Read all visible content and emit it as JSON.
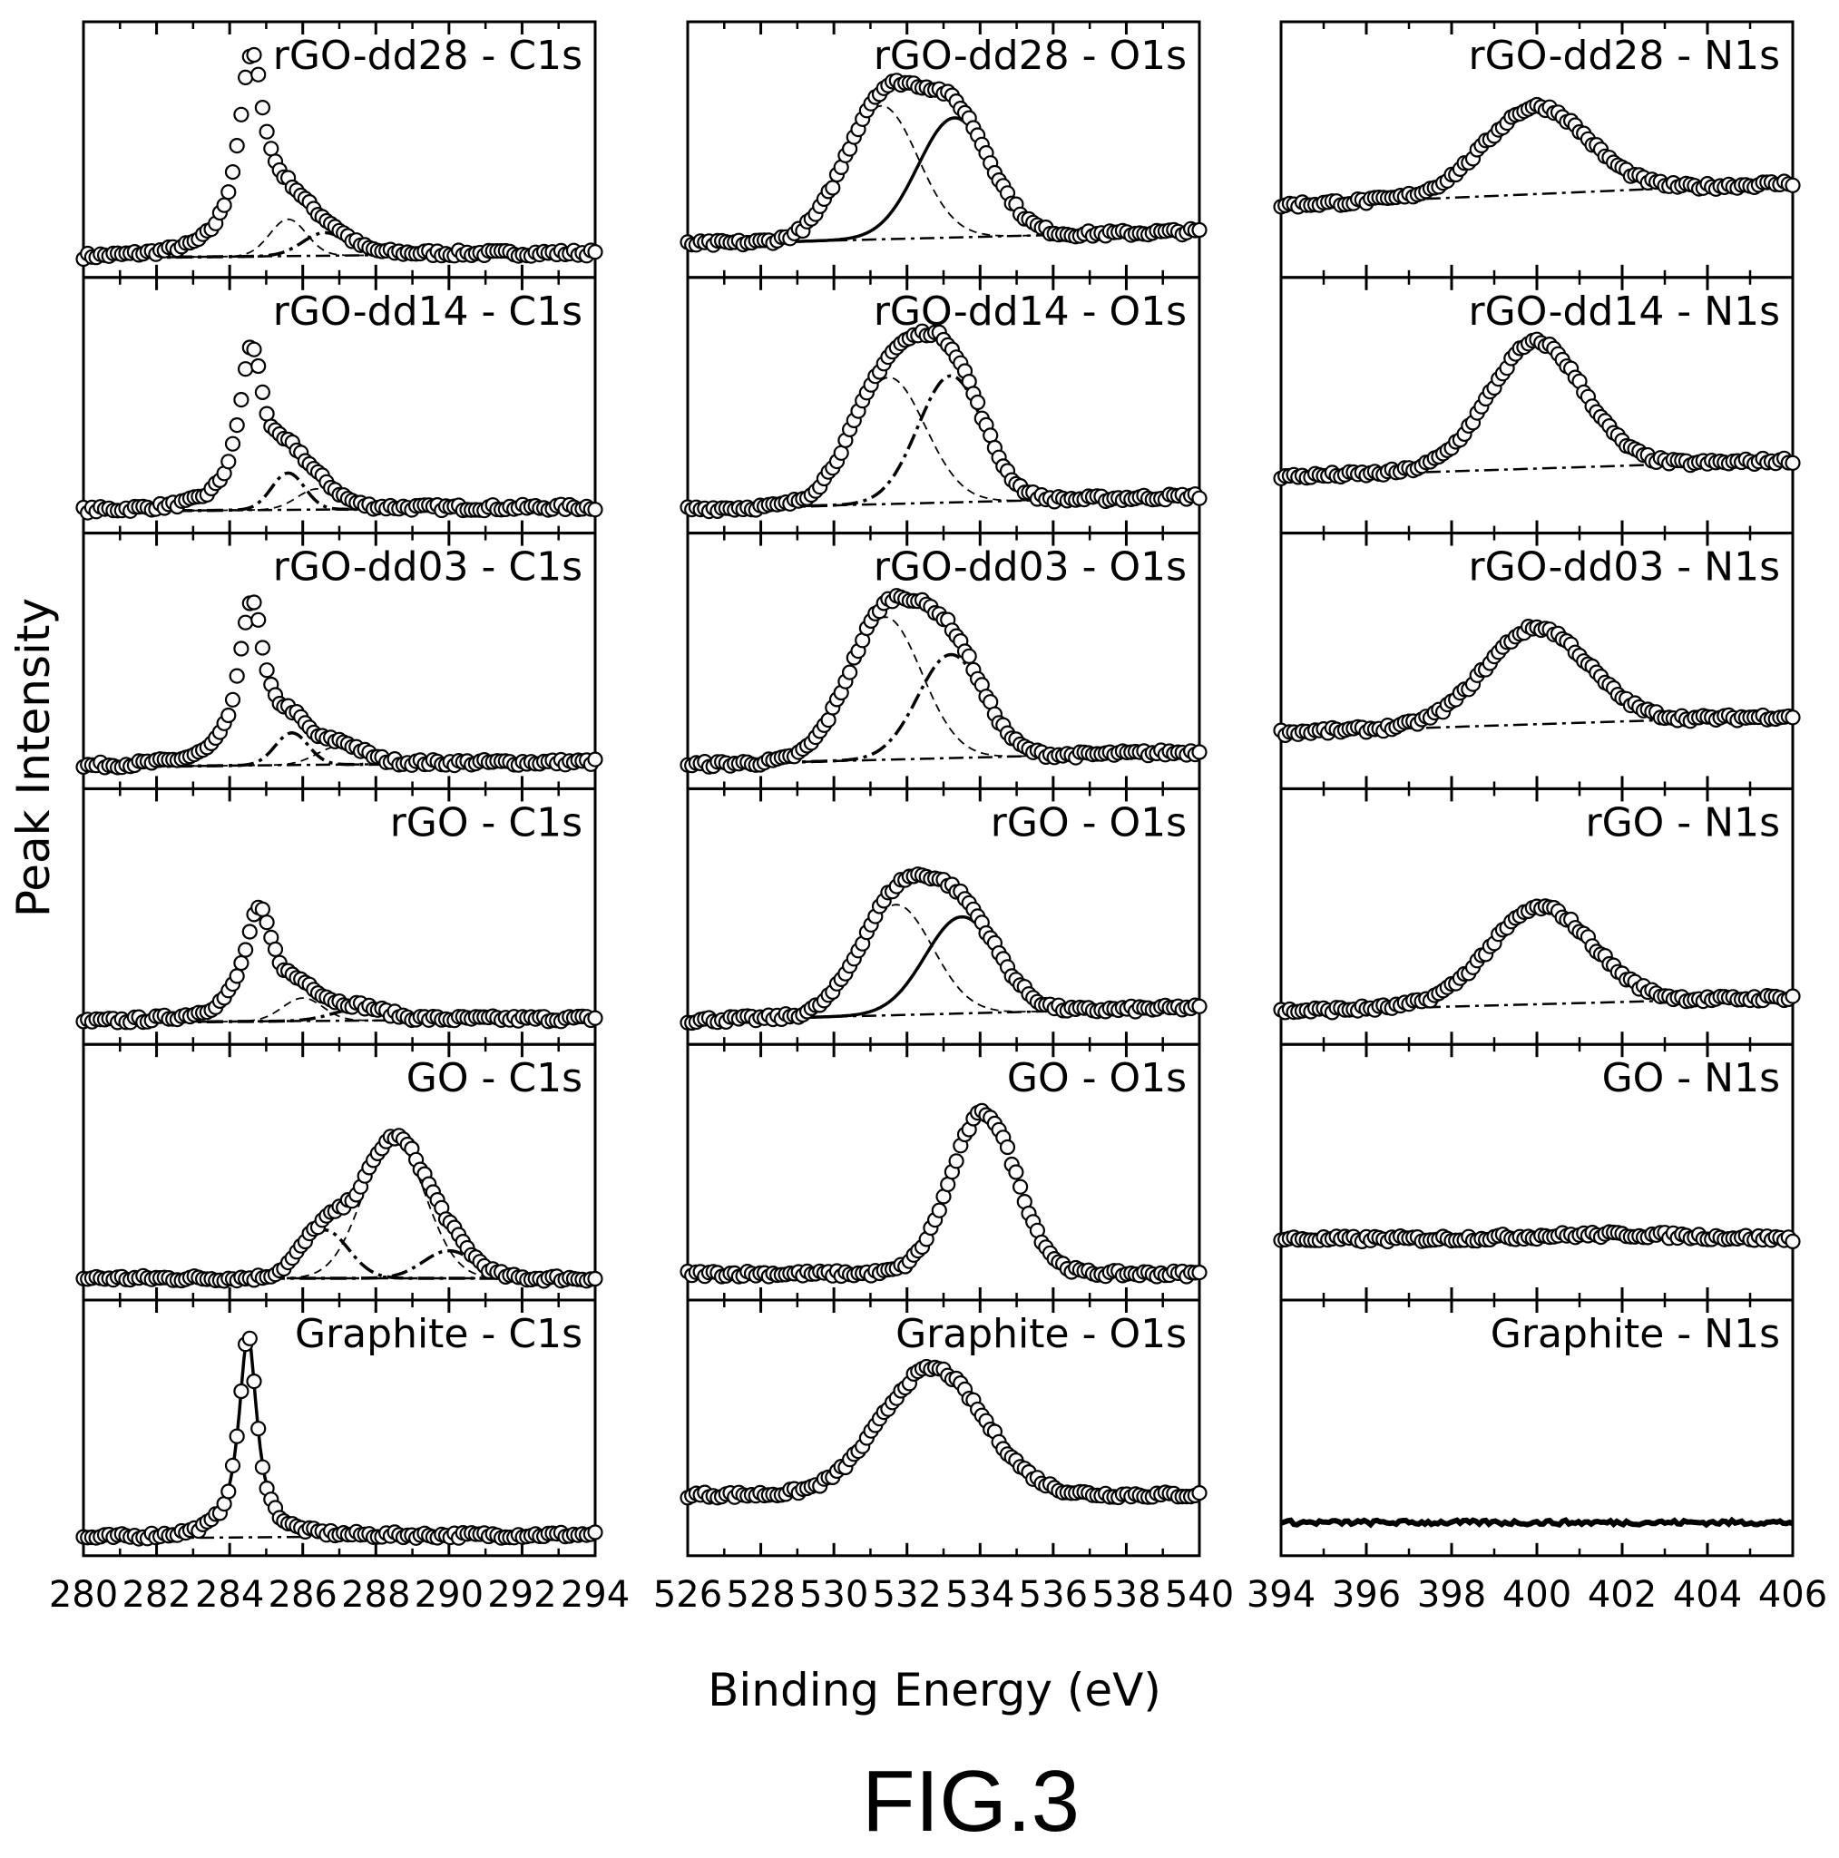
{
  "figure_label": "FIG.3",
  "chart_data": {
    "type": "line",
    "description_style": "6x3 grid of XPS spectra panels; open circles = measured data, curves = fitted components",
    "ylabel": "Peak Intensity",
    "xlabel": "Binding Energy (eV)",
    "samples": [
      "rGO-dd28",
      "rGO-dd14",
      "rGO-dd03",
      "rGO",
      "GO",
      "Graphite"
    ],
    "columns": [
      {
        "core_level": "C1s",
        "xlim": [
          280,
          294
        ],
        "ticks": [
          "280",
          "282",
          "284",
          "286",
          "288",
          "290",
          "292",
          "294"
        ],
        "panels": [
          {
            "label": "rGO-dd28 - C1s",
            "baseline": 0.04,
            "slope": 0.0015,
            "peaks": [
              {
                "center": 284.6,
                "height": 0.86,
                "width": 0.45,
                "shape": "lorentz"
              },
              {
                "center": 285.6,
                "height": 0.16,
                "width": 0.5,
                "shape": "gauss",
                "style": "dash"
              },
              {
                "center": 286.6,
                "height": 0.1,
                "width": 0.6,
                "shape": "gauss",
                "style": "dashdot"
              }
            ]
          },
          {
            "label": "rGO-dd14 - C1s",
            "baseline": 0.05,
            "slope": 0.0012,
            "peaks": [
              {
                "center": 284.6,
                "height": 0.7,
                "width": 0.42,
                "shape": "lorentz"
              },
              {
                "center": 285.6,
                "height": 0.16,
                "width": 0.45,
                "shape": "gauss",
                "style": "dashdot"
              },
              {
                "center": 286.4,
                "height": 0.09,
                "width": 0.55,
                "shape": "gauss",
                "style": "dash"
              }
            ]
          },
          {
            "label": "rGO-dd03 - C1s",
            "baseline": 0.05,
            "slope": 0.0015,
            "peaks": [
              {
                "center": 284.6,
                "height": 0.72,
                "width": 0.42,
                "shape": "lorentz"
              },
              {
                "center": 285.7,
                "height": 0.14,
                "width": 0.45,
                "shape": "gauss",
                "style": "dashdot"
              },
              {
                "center": 287.0,
                "height": 0.08,
                "width": 0.6,
                "shape": "gauss",
                "style": "dash"
              }
            ]
          },
          {
            "label": "rGO - C1s",
            "baseline": 0.05,
            "slope": 0.0012,
            "peaks": [
              {
                "center": 284.8,
                "height": 0.48,
                "width": 0.5,
                "shape": "lorentz"
              },
              {
                "center": 286.0,
                "height": 0.1,
                "width": 0.55,
                "shape": "gauss",
                "style": "dash"
              },
              {
                "center": 287.5,
                "height": 0.05,
                "width": 0.7,
                "shape": "gauss",
                "style": "dashdot"
              }
            ]
          },
          {
            "label": "GO - C1s",
            "baseline": 0.05,
            "slope": 0.0,
            "peaks": [
              {
                "center": 286.6,
                "height": 0.21,
                "width": 0.65,
                "shape": "gauss",
                "style": "dashdot"
              },
              {
                "center": 288.5,
                "height": 0.6,
                "width": 0.85,
                "shape": "gauss",
                "style": "dash"
              },
              {
                "center": 290.0,
                "height": 0.12,
                "width": 0.7,
                "shape": "gauss",
                "style": "dashdot"
              }
            ]
          },
          {
            "label": "Graphite - C1s",
            "baseline": 0.03,
            "slope": 0.0012,
            "peaks": [
              {
                "center": 284.5,
                "height": 0.88,
                "width": 0.3,
                "shape": "lorentz",
                "style": "solid"
              }
            ]
          }
        ]
      },
      {
        "core_level": "O1s",
        "xlim": [
          526,
          540
        ],
        "ticks": [
          "526",
          "528",
          "530",
          "532",
          "534",
          "536",
          "538",
          "540"
        ],
        "panels": [
          {
            "label": "rGO-dd28 - O1s",
            "baseline": 0.1,
            "slope": 0.004,
            "peaks": [
              {
                "center": 531.3,
                "height": 0.58,
                "width": 1.0,
                "shape": "gauss",
                "style": "dash"
              },
              {
                "center": 533.3,
                "height": 0.52,
                "width": 1.0,
                "shape": "gauss",
                "style": "solid"
              }
            ]
          },
          {
            "label": "rGO-dd14 - O1s",
            "baseline": 0.06,
            "slope": 0.004,
            "peaks": [
              {
                "center": 531.5,
                "height": 0.55,
                "width": 1.0,
                "shape": "gauss",
                "style": "dash"
              },
              {
                "center": 533.2,
                "height": 0.55,
                "width": 0.9,
                "shape": "gauss",
                "style": "dashdot"
              }
            ]
          },
          {
            "label": "rGO-dd03 - O1s",
            "baseline": 0.06,
            "slope": 0.004,
            "peaks": [
              {
                "center": 531.4,
                "height": 0.62,
                "width": 1.0,
                "shape": "gauss",
                "style": "dash"
              },
              {
                "center": 533.2,
                "height": 0.45,
                "width": 0.9,
                "shape": "gauss",
                "style": "dashdot"
              }
            ]
          },
          {
            "label": "rGO - O1s",
            "baseline": 0.06,
            "slope": 0.004,
            "peaks": [
              {
                "center": 531.7,
                "height": 0.48,
                "width": 1.0,
                "shape": "gauss",
                "style": "dash"
              },
              {
                "center": 533.5,
                "height": 0.42,
                "width": 1.0,
                "shape": "gauss",
                "style": "solid"
              }
            ]
          },
          {
            "label": "GO - O1s",
            "baseline": 0.07,
            "slope": 0.0,
            "peaks": [
              {
                "center": 534.1,
                "height": 0.7,
                "width": 0.9,
                "shape": "gauss"
              }
            ]
          },
          {
            "label": "Graphite - O1s",
            "baseline": 0.22,
            "slope": 0.0,
            "peaks": [
              {
                "center": 532.7,
                "height": 0.55,
                "width": 1.4,
                "shape": "gauss"
              }
            ]
          }
        ]
      },
      {
        "core_level": "N1s",
        "xlim": [
          394,
          406
        ],
        "ticks": [
          "394",
          "396",
          "398",
          "400",
          "402",
          "404",
          "406"
        ],
        "panels": [
          {
            "label": "rGO-dd28 - N1s",
            "baseline": 0.27,
            "slope": 0.008,
            "peaks": [
              {
                "center": 400.0,
                "height": 0.38,
                "width": 1.2,
                "shape": "gauss",
                "style": "solid"
              }
            ]
          },
          {
            "label": "rGO-dd14 - N1s",
            "baseline": 0.2,
            "slope": 0.006,
            "peaks": [
              {
                "center": 400.0,
                "height": 0.55,
                "width": 1.1,
                "shape": "gauss",
                "style": "solid"
              }
            ]
          },
          {
            "label": "rGO-dd03 - N1s",
            "baseline": 0.2,
            "slope": 0.006,
            "peaks": [
              {
                "center": 400.0,
                "height": 0.42,
                "width": 1.2,
                "shape": "gauss",
                "style": "solid"
              }
            ]
          },
          {
            "label": "rGO - N1s",
            "baseline": 0.1,
            "slope": 0.005,
            "peaks": [
              {
                "center": 400.1,
                "height": 0.42,
                "width": 1.2,
                "shape": "gauss",
                "style": "solid"
              }
            ]
          },
          {
            "label": "GO - N1s",
            "baseline": 0.22,
            "slope": 0.0,
            "peaks": [
              {
                "center": 401.8,
                "height": 0.02,
                "width": 2.0,
                "shape": "gauss"
              }
            ]
          },
          {
            "label": "Graphite - N1s",
            "baseline": 0.1,
            "slope": 0.0,
            "peaks": []
          }
        ]
      }
    ]
  }
}
